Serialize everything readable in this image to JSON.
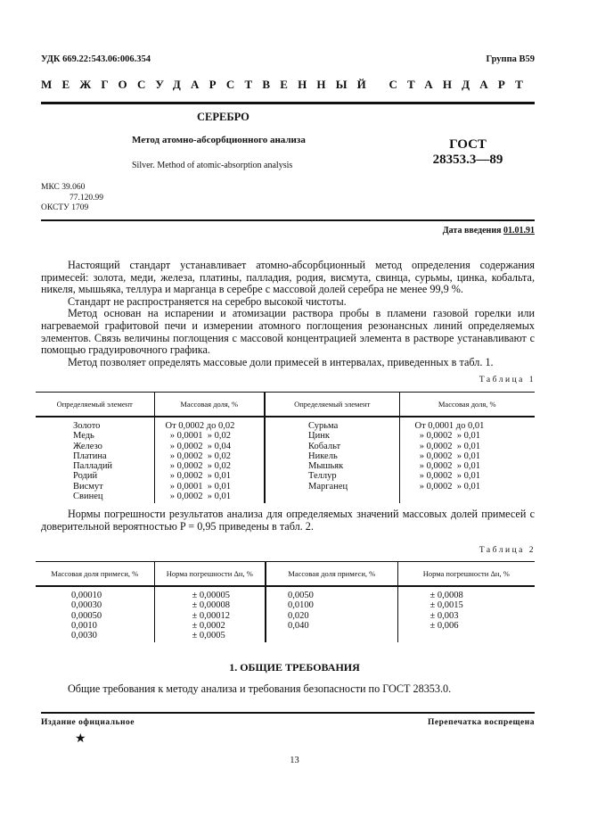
{
  "header": {
    "udk": "УДК 669.22:543.06:006.354",
    "group": "Группа В59",
    "banner": "МЕЖГОСУДАРСТВЕННЫЙ СТАНДАРТ"
  },
  "title": {
    "main": "СЕРЕБРО",
    "sub": "Метод атомно-абсорбционного анализа",
    "english": "Silver. Method of atomic-absorption analysis",
    "gost": "ГОСТ",
    "number": "28353.3—89"
  },
  "codes": {
    "mks_label": "МКС",
    "mks1": "39.060",
    "mks2": "77.120.99",
    "okstu": "ОКСТУ 1709"
  },
  "date": {
    "label": "Дата введения",
    "value": "01.01.91"
  },
  "paragraphs": [
    "Настоящий стандарт устанавливает атомно-абсорбционный метод определения содержания примесей: золота, меди, железа, платины, палладия, родия, висмута, свинца, сурьмы, цинка, кобальта, никеля, мышьяка, теллура и марганца в серебре с массовой долей серебра не менее 99,9 %.",
    "Стандарт не распространяется на серебро высокой чистоты.",
    "Метод основан на испарении и атомизации раствора пробы в пламени газовой горелки или нагреваемой графитовой печи и измерении атомного поглощения резонансных линий определяемых элементов. Связь величины поглощения с массовой концентрацией элемента в растворе устанавливают с помощью градуировочного графика.",
    "Метод позволяет определять массовые доли примесей в интервалах, приведенных в табл. 1."
  ],
  "table1": {
    "label": "Таблица 1",
    "headers": [
      "Определяемый элемент",
      "Массовая доля, %",
      "Определяемый элемент",
      "Массовая доля, %"
    ],
    "left_elements": [
      "Золото",
      "Медь",
      "Железо",
      "Платина",
      "Палладий",
      "Родий",
      "Висмут",
      "Свинец"
    ],
    "left_ranges": [
      "От 0,0002 до 0,02",
      "  » 0,0001  » 0,02",
      "  » 0,0002  » 0,04",
      "  » 0,0002  » 0,02",
      "  » 0,0002  » 0,02",
      "  » 0,0002  » 0,01",
      "  » 0,0001  » 0,01",
      "  » 0,0002  » 0,01"
    ],
    "right_elements": [
      "Сурьма",
      "Цинк",
      "Кобальт",
      "Никель",
      "Мышьяк",
      "Теллур",
      "Марганец"
    ],
    "right_ranges": [
      "От 0,0001 до 0,01",
      "  » 0,0002  » 0,01",
      "  » 0,0002  » 0,01",
      "  » 0,0002  » 0,01",
      "  » 0,0002  » 0,01",
      "  » 0,0002  » 0,01",
      "  » 0,0002  » 0,01"
    ]
  },
  "para2": "Нормы погрешности результатов анализа для определяемых значений массовых долей примесей с доверительной вероятностью P = 0,95 приведены в табл. 2.",
  "table2": {
    "label": "Таблица 2",
    "headers": [
      "Массовая доля примеси, %",
      "Норма погрешности Δн, %",
      "Массовая доля примеси, %",
      "Норма погрешности Δн, %"
    ],
    "c1": [
      "0,00010",
      "0,00030",
      "0,00050",
      "0,0010",
      "0,0030"
    ],
    "c2": [
      "± 0,00005",
      "± 0,00008",
      "± 0,00012",
      "± 0,0002",
      "± 0,0005"
    ],
    "c3": [
      "0,0050",
      "0,0100",
      "0,020",
      "0,040"
    ],
    "c4": [
      "± 0,0008",
      "± 0,0015",
      "± 0,003",
      "± 0,006"
    ]
  },
  "section1": {
    "title": "1. ОБЩИЕ ТРЕБОВАНИЯ",
    "text": "Общие требования к методу анализа и требования безопасности по ГОСТ 28353.0."
  },
  "footer": {
    "left": "Издание официальное",
    "right": "Перепечатка воспрещена",
    "star": "★",
    "page": "13"
  }
}
